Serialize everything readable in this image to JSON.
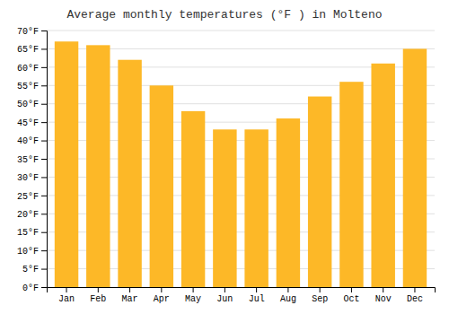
{
  "chart_data": {
    "type": "bar",
    "title": "Average monthly temperatures (°F ) in Molteno",
    "categories": [
      "Jan",
      "Feb",
      "Mar",
      "Apr",
      "May",
      "Jun",
      "Jul",
      "Aug",
      "Sep",
      "Oct",
      "Nov",
      "Dec"
    ],
    "values": [
      67,
      66,
      62,
      55,
      48,
      43,
      43,
      46,
      52,
      56,
      61,
      65
    ],
    "color": "#FDB827",
    "ylim": [
      0,
      70
    ],
    "yticks": [
      {
        "value": 0,
        "label": "0°F"
      },
      {
        "value": 5,
        "label": "5°F"
      },
      {
        "value": 10,
        "label": "10°F"
      },
      {
        "value": 15,
        "label": "15°F"
      },
      {
        "value": 20,
        "label": "20°F"
      },
      {
        "value": 25,
        "label": "25°F"
      },
      {
        "value": 30,
        "label": "30°F"
      },
      {
        "value": 35,
        "label": "35°F"
      },
      {
        "value": 40,
        "label": "40°F"
      },
      {
        "value": 45,
        "label": "45°F"
      },
      {
        "value": 50,
        "label": "50°F"
      },
      {
        "value": 55,
        "label": "55°F"
      },
      {
        "value": 60,
        "label": "60°F"
      },
      {
        "value": 65,
        "label": "65°F"
      },
      {
        "value": 70,
        "label": "70°F"
      }
    ],
    "grid": true
  }
}
